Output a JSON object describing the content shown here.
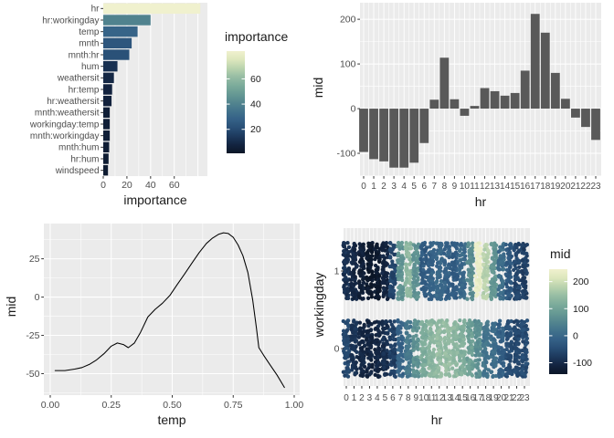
{
  "theme": {
    "panel_bg": "#ebebeb",
    "grid_color": "#ffffff",
    "tick_label_color": "#4d4d4d",
    "tick_color": "#333333",
    "axis_title_color": "#1a1a1a",
    "bar_gray": "#595959",
    "line_color": "#000000",
    "palette_stops": [
      "#0b1627",
      "#132440",
      "#1d395d",
      "#294f76",
      "#356187",
      "#42738c",
      "#54868f",
      "#679a94",
      "#7dac9b",
      "#97bda4",
      "#bad3ae",
      "#dde7bd",
      "#f0f1ce"
    ]
  },
  "chart_data": [
    {
      "id": "importance-by-feature",
      "type": "bar",
      "orientation": "horizontal",
      "xlabel": "importance",
      "ylabel": "",
      "categories": [
        "hr",
        "hr:workingday",
        "temp",
        "mnth",
        "mnth:hr",
        "hum",
        "weathersit",
        "hr:temp",
        "hr:weathersit",
        "mnth:weathersit",
        "workingday:temp",
        "mnth:workingday",
        "mnth:hum",
        "hr:hum",
        "windspeed"
      ],
      "values": [
        82,
        40,
        29,
        24,
        22,
        12,
        9,
        7.5,
        7,
        5.5,
        5.5,
        5.5,
        5,
        4.5,
        4
      ],
      "xlim": [
        0,
        88
      ],
      "xticks": [
        0,
        20,
        40,
        60
      ],
      "grid_major_x": [
        0,
        20,
        40,
        60,
        80
      ],
      "grid_minor_x": [
        10,
        30,
        50,
        70
      ],
      "legend": {
        "title": "importance",
        "ticks": [
          60,
          40,
          20
        ],
        "domain": [
          1,
          82
        ],
        "position": "right"
      },
      "color_by": "value"
    },
    {
      "id": "mid-by-hr",
      "type": "bar",
      "orientation": "vertical",
      "xlabel": "hr",
      "ylabel": "mid",
      "categories": [
        0,
        1,
        2,
        3,
        4,
        5,
        6,
        7,
        8,
        9,
        10,
        11,
        12,
        13,
        14,
        15,
        16,
        17,
        18,
        19,
        20,
        21,
        22,
        23
      ],
      "values": [
        -97,
        -113,
        -118,
        -132,
        -132,
        -121,
        -77,
        20,
        114,
        21,
        -16,
        6,
        46,
        39,
        29,
        35,
        85,
        212,
        170,
        80,
        22,
        -20,
        -41,
        -70
      ],
      "ylim": [
        -151,
        237
      ],
      "yticks": [
        -100,
        0,
        100,
        200
      ],
      "grid_major_y": [
        -100,
        0,
        100,
        200
      ],
      "grid_minor_y": [
        -150,
        -50,
        50,
        150
      ],
      "bar_color": "#595959"
    },
    {
      "id": "mid-by-temp",
      "type": "line",
      "xlabel": "temp",
      "ylabel": "mid",
      "x": [
        0.02,
        0.06,
        0.1,
        0.13,
        0.16,
        0.19,
        0.22,
        0.25,
        0.275,
        0.3,
        0.32,
        0.345,
        0.37,
        0.4,
        0.43,
        0.46,
        0.49,
        0.52,
        0.55,
        0.58,
        0.61,
        0.64,
        0.665,
        0.69,
        0.71,
        0.73,
        0.75,
        0.77,
        0.79,
        0.81,
        0.83,
        0.845,
        0.855,
        0.875,
        0.9,
        0.93,
        0.96
      ],
      "y": [
        -48,
        -48,
        -47,
        -46,
        -44,
        -41,
        -37,
        -32,
        -30,
        -31,
        -33,
        -30,
        -23,
        -13,
        -8,
        -4,
        1,
        8,
        15,
        22,
        29,
        35,
        38.5,
        41,
        42,
        41.5,
        39,
        34,
        27,
        16,
        -2,
        -20,
        -33,
        -38,
        -44,
        -51,
        -59
      ],
      "xlim": [
        -0.026,
        1.022
      ],
      "ylim": [
        -64,
        48
      ],
      "xticks": [
        0,
        0.25,
        0.5,
        0.75,
        1
      ],
      "xtick_labels": [
        "0.00",
        "0.25",
        "0.50",
        "0.75",
        "1.00"
      ],
      "yticks": [
        -50,
        -25,
        0,
        25
      ],
      "grid_minor_x": [
        0.125,
        0.375,
        0.625,
        0.875
      ],
      "grid_minor_y": [
        -62.5,
        -37.5,
        -12.5,
        12.5,
        37.5
      ]
    },
    {
      "id": "mid-by-hr-and-workingday",
      "type": "jitter",
      "xlabel": "hr",
      "ylabel": "workingday",
      "categories": [
        0,
        1,
        2,
        3,
        4,
        5,
        6,
        7,
        8,
        9,
        10,
        11,
        12,
        13,
        14,
        15,
        16,
        17,
        18,
        19,
        20,
        21,
        22,
        23
      ],
      "rows": [
        {
          "label": "1",
          "mid_by_hr": [
            -90,
            -105,
            -120,
            -135,
            -130,
            -110,
            -60,
            75,
            140,
            70,
            -25,
            -10,
            0,
            -12,
            -25,
            0,
            60,
            235,
            180,
            80,
            10,
            -30,
            -60,
            -70
          ]
        },
        {
          "label": "0",
          "mid_by_hr": [
            -55,
            -85,
            -105,
            -110,
            -105,
            -95,
            -70,
            -10,
            30,
            70,
            115,
            135,
            145,
            145,
            138,
            125,
            95,
            65,
            25,
            10,
            -15,
            -45,
            -58,
            -50
          ]
        }
      ],
      "legend": {
        "title": "mid",
        "ticks": [
          200,
          100,
          0,
          -100
        ],
        "domain": [
          -142,
          246
        ],
        "position": "right"
      }
    }
  ]
}
